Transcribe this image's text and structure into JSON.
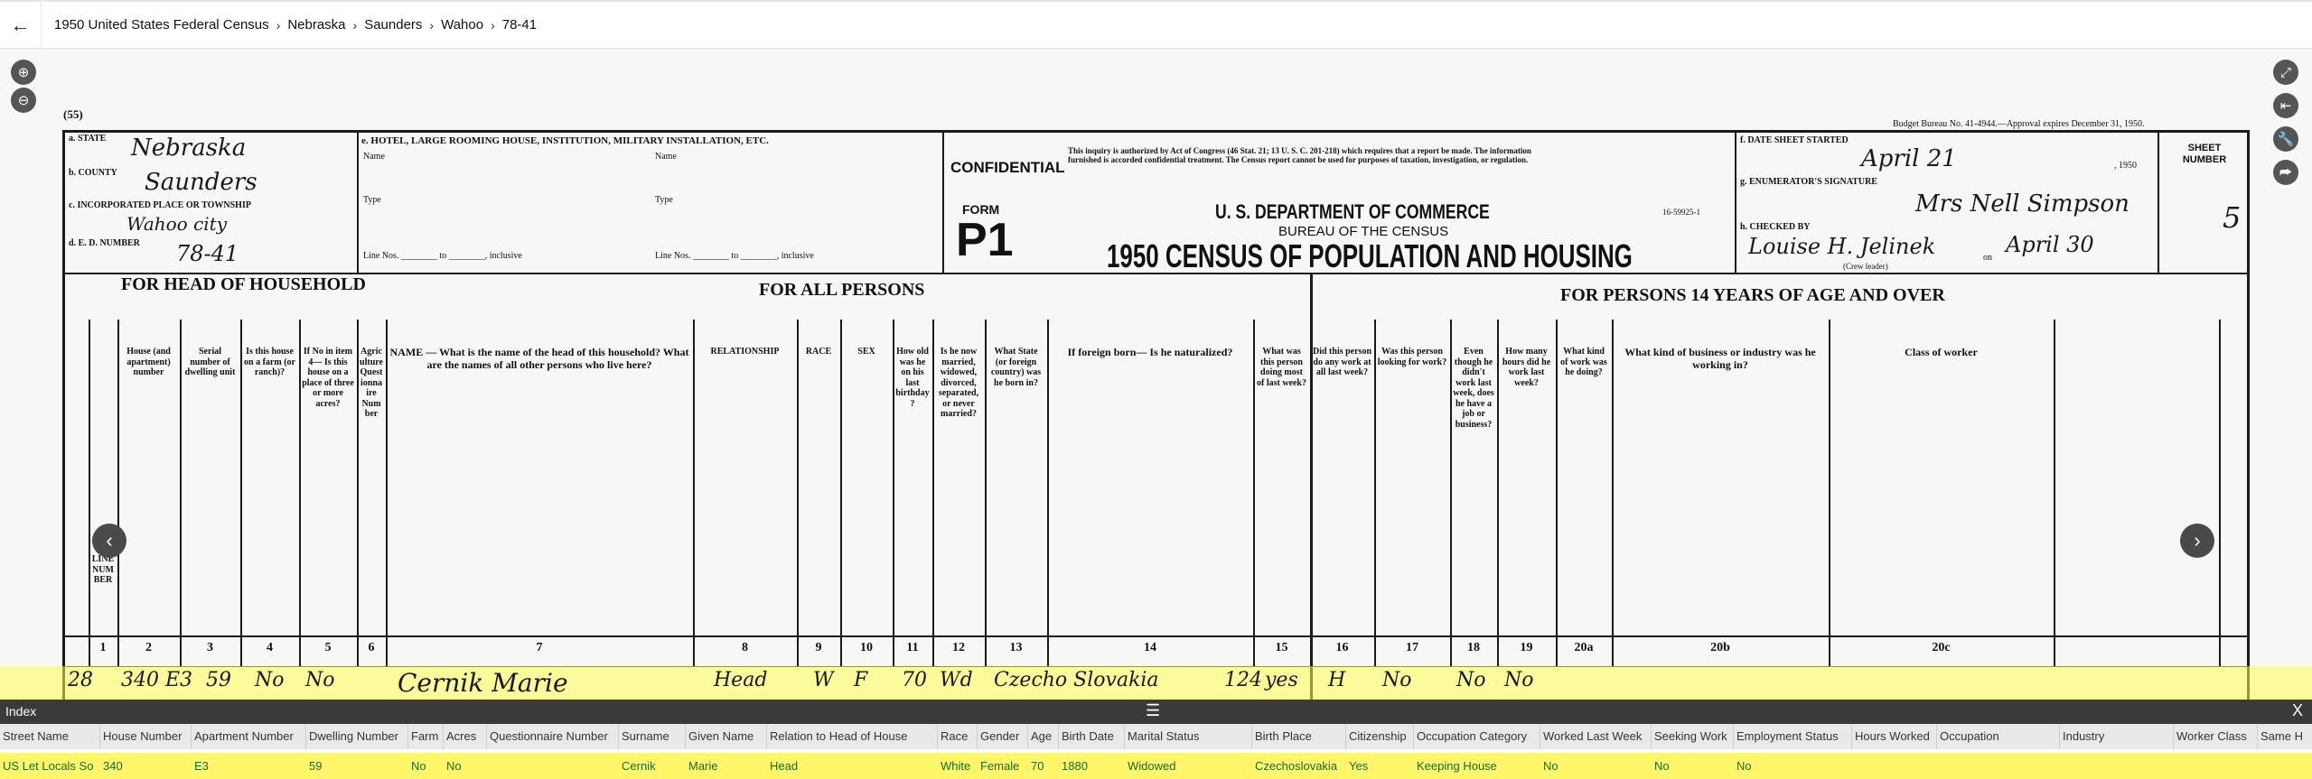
{
  "header": {
    "back_icon": "arrow-left-icon",
    "breadcrumb": [
      "1950 United States Federal Census",
      "Nebraska",
      "Saunders",
      "Wahoo",
      "78-41"
    ]
  },
  "viewer": {
    "left_tools": [
      {
        "icon": "zoom-in-icon",
        "glyph": "⊕"
      },
      {
        "icon": "zoom-out-icon",
        "glyph": "⊖"
      }
    ],
    "right_tools": [
      {
        "icon": "fullscreen-icon",
        "glyph": "⤢"
      },
      {
        "icon": "collapse-panel-icon",
        "glyph": "⇤"
      },
      {
        "icon": "wrench-icon",
        "glyph": "🔧"
      },
      {
        "icon": "share-icon",
        "glyph": "⮫"
      }
    ],
    "prev_glyph": "‹",
    "next_glyph": "›"
  },
  "document": {
    "page_code": "(55)",
    "budget": "Budget Bureau No. 41-4944.—Approval expires December 31, 1950.",
    "state_label": "a. STATE",
    "state_value": "Nebraska",
    "county_label": "b. COUNTY",
    "county_value": "Saunders",
    "place_label": "c. INCORPORATED PLACE OR TOWNSHIP",
    "place_value": "Wahoo city",
    "ed_label": "d. E. D. NUMBER",
    "ed_value": "78-41",
    "hotel_label": "e. HOTEL, LARGE ROOMING HOUSE, INSTITUTION, MILITARY INSTALLATION, ETC.",
    "name_label": "Name",
    "type_label": "Type",
    "line_nos": "Line Nos. ________ to ________, inclusive",
    "confidential": "CONFIDENTIAL",
    "confidential_text": "This inquiry is authorized by Act of Congress (46 Stat. 21; 13 U. S. C. 201-218) which requires that a report be made. The information furnished is accorded confidential treatment. The Census report cannot be used for purposes of taxation, investigation, or regulation.",
    "form_label": "FORM",
    "form_code": "P1",
    "dept": "U. S. DEPARTMENT OF COMMERCE",
    "bureau": "BUREAU OF THE CENSUS",
    "title": "1950 CENSUS OF POPULATION AND HOUSING",
    "form_no": "16-59925-1",
    "date_label": "f. DATE SHEET STARTED",
    "date_value": "April 21",
    "date_year": ", 1950",
    "enum_label": "g. ENUMERATOR'S SIGNATURE",
    "enum_value": "Mrs Nell Simpson",
    "checked_label": "h. CHECKED BY",
    "checked_value": "Louise H. Jelinek",
    "checked_on": "on",
    "checked_date": "April 30",
    "crew_leader": "(Crew leader)",
    "sheet_label": "SHEET NUMBER",
    "sheet_value": "5",
    "sec_head": "FOR HEAD OF HOUSEHOLD",
    "sec_all": "FOR ALL PERSONS",
    "sec_14": "FOR PERSONS 14 YEARS OF AGE AND OVER",
    "col_heads": [
      {
        "n": "1",
        "t": "LINE NUMBER"
      },
      {
        "n": "2",
        "t": "House (and apartment) number"
      },
      {
        "n": "3",
        "t": "Serial number of dwelling unit"
      },
      {
        "n": "4",
        "t": "Is this house on a farm (or ranch)?"
      },
      {
        "n": "5",
        "t": "If No in item 4— Is this house on a place of three or more acres?"
      },
      {
        "n": "6",
        "t": "Agriculture Questionnaire Number"
      },
      {
        "n": "7",
        "t": "NAME — What is the name of the head of this household? What are the names of all other persons who live here?"
      },
      {
        "n": "8",
        "t": "RELATIONSHIP"
      },
      {
        "n": "9",
        "t": "RACE"
      },
      {
        "n": "10",
        "t": "SEX"
      },
      {
        "n": "11",
        "t": "How old was he on his last birthday?"
      },
      {
        "n": "12",
        "t": "Is he now married, widowed, divorced, separated, or never married?"
      },
      {
        "n": "13",
        "t": "What State (or foreign country) was he born in?"
      },
      {
        "n": "14",
        "t": "If foreign born— Is he naturalized?"
      },
      {
        "n": "15",
        "t": "What was this person doing most of last week?"
      },
      {
        "n": "16",
        "t": "Did this person do any work at all last week?"
      },
      {
        "n": "17",
        "t": "Was this person looking for work?"
      },
      {
        "n": "18",
        "t": "Even though he didn't work last week, does he have a job or business?"
      },
      {
        "n": "19",
        "t": "How many hours did he work last week?"
      },
      {
        "n": "20a",
        "t": "What kind of work was he doing?"
      },
      {
        "n": "20b",
        "t": "What kind of business or industry was he working in?"
      },
      {
        "n": "20c",
        "t": "Class of worker"
      }
    ],
    "row": {
      "line": "28",
      "house": "340 E3",
      "serial": "59",
      "farm": "No",
      "acres": "No",
      "name": "Cernik Marie",
      "rel": "Head",
      "race": "W",
      "sex": "F",
      "age": "70",
      "marital": "Wd",
      "birthplace": "Czecho Slovakia",
      "code": "124",
      "nat": "yes",
      "doing": "H",
      "work": "No",
      "looking": "No",
      "job": "No"
    }
  },
  "index": {
    "title": "Index",
    "menu_icon": "hamburger-icon",
    "close_label": "X",
    "columns": [
      "Street Name",
      "House Number",
      "Apartment Number",
      "Dwelling Number",
      "Farm",
      "Acres",
      "Questionnaire Number",
      "Surname",
      "Given Name",
      "Relation to Head of House",
      "Race",
      "Gender",
      "Age",
      "Birth Date",
      "Marital Status",
      "Birth Place",
      "Citizenship",
      "Occupation Category",
      "Worked Last Week",
      "Seeking Work",
      "Employment Status",
      "Hours Worked",
      "Occupation",
      "Industry",
      "Worker Class",
      "Same H"
    ],
    "row": [
      "US Let Locals So",
      "340",
      "E3",
      "59",
      "No",
      "No",
      "",
      "Cernik",
      "Marie",
      "Head",
      "White",
      "Female",
      "70",
      "1880",
      "Widowed",
      "Czechoslovakia",
      "Yes",
      "Keeping House",
      "No",
      "No",
      "No",
      "",
      "",
      "",
      "",
      ""
    ],
    "row_highlight": "#fff66a",
    "text_color": "#1b6b2a"
  }
}
